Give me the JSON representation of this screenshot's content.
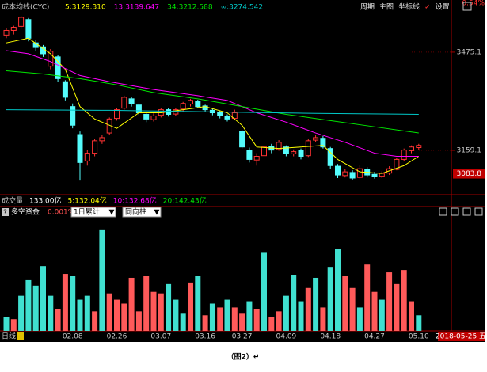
{
  "chart_data": [
    {
      "type": "candlestick",
      "title": "成本均线(CYC)",
      "open": [
        3530,
        3545,
        3558,
        3580,
        3505,
        3492,
        3430,
        3460,
        3380,
        3300,
        3210,
        3125,
        3150,
        3190,
        3215,
        3262,
        3295,
        3325,
        3305,
        3275,
        3258,
        3272,
        3290,
        3276,
        3292,
        3308,
        3318,
        3302,
        3288,
        3282,
        3268,
        3262,
        3220,
        3160,
        3128,
        3142,
        3172,
        3162,
        3170,
        3148,
        3158,
        3142,
        3192,
        3198,
        3165,
        3108,
        3078,
        3088,
        3072,
        3098,
        3082,
        3076,
        3086,
        3098,
        3130,
        3158,
        3168
      ],
      "high": [
        3552,
        3560,
        3592,
        3585,
        3515,
        3498,
        3485,
        3465,
        3385,
        3310,
        3220,
        3160,
        3195,
        3210,
        3265,
        3295,
        3335,
        3332,
        3310,
        3282,
        3278,
        3296,
        3295,
        3295,
        3315,
        3325,
        3322,
        3306,
        3296,
        3288,
        3275,
        3290,
        3225,
        3168,
        3150,
        3175,
        3180,
        3192,
        3175,
        3162,
        3165,
        3195,
        3210,
        3205,
        3170,
        3115,
        3098,
        3095,
        3112,
        3105,
        3090,
        3092,
        3108,
        3135,
        3165,
        3175,
        3180
      ],
      "low": [
        3520,
        3532,
        3550,
        3510,
        3480,
        3460,
        3420,
        3380,
        3320,
        3230,
        3062,
        3110,
        3140,
        3180,
        3210,
        3255,
        3290,
        3300,
        3272,
        3250,
        3252,
        3265,
        3268,
        3270,
        3285,
        3300,
        3295,
        3284,
        3272,
        3262,
        3252,
        3258,
        3165,
        3120,
        3110,
        3135,
        3150,
        3158,
        3140,
        3140,
        3130,
        3138,
        3185,
        3165,
        3100,
        3070,
        3072,
        3065,
        3068,
        3072,
        3068,
        3070,
        3080,
        3095,
        3125,
        3150,
        3160
      ],
      "close": [
        3545,
        3555,
        3587,
        3520,
        3490,
        3470,
        3478,
        3390,
        3330,
        3240,
        3120,
        3150,
        3190,
        3200,
        3260,
        3290,
        3330,
        3310,
        3280,
        3260,
        3270,
        3290,
        3275,
        3290,
        3310,
        3320,
        3300,
        3290,
        3280,
        3270,
        3260,
        3280,
        3170,
        3130,
        3140,
        3170,
        3160,
        3185,
        3150,
        3155,
        3140,
        3190,
        3200,
        3170,
        3110,
        3080,
        3090,
        3070,
        3100,
        3080,
        3075,
        3085,
        3100,
        3130,
        3160,
        3170,
        3175
      ],
      "up_color": "#ff3232",
      "down_color": "#54fcfc",
      "lines": [
        {
          "name": "5:3129.310",
          "color": "#ffff00",
          "x": [
            0,
            3,
            6,
            8,
            10,
            12,
            15,
            18,
            21,
            24,
            27,
            30,
            32,
            34,
            37,
            40,
            43,
            45,
            48,
            51,
            54,
            56
          ],
          "values": [
            3505,
            3520,
            3470,
            3420,
            3300,
            3260,
            3230,
            3280,
            3280,
            3290,
            3300,
            3280,
            3240,
            3170,
            3165,
            3170,
            3175,
            3130,
            3090,
            3085,
            3110,
            3140
          ]
        },
        {
          "name": "13:3139.647",
          "color": "#ff00ff",
          "x": [
            0,
            3,
            6,
            10,
            14,
            20,
            26,
            30,
            34,
            38,
            42,
            46,
            50,
            53,
            56
          ],
          "values": [
            3480,
            3470,
            3445,
            3400,
            3380,
            3355,
            3335,
            3320,
            3280,
            3250,
            3215,
            3185,
            3150,
            3140,
            3140
          ]
        },
        {
          "name": "34:3212.588",
          "color": "#00e600",
          "x": [
            0,
            5,
            10,
            15,
            20,
            26,
            32,
            38,
            44,
            50,
            56
          ],
          "values": [
            3415,
            3405,
            3390,
            3370,
            3345,
            3325,
            3300,
            3275,
            3255,
            3235,
            3215
          ]
        },
        {
          "name": "∞:3274.542",
          "color": "#00c8c8",
          "x": [
            0,
            14,
            28,
            42,
            56
          ],
          "values": [
            3290,
            3288,
            3283,
            3278,
            3275
          ]
        }
      ],
      "ylim": [
        3019,
        3643
      ],
      "yticks": [
        3475.1,
        3159.1
      ],
      "last_price": 3083.8,
      "corner_label": "0.54%",
      "menu": [
        "周期",
        "主图",
        "坐标线",
        "✓",
        "设置"
      ],
      "volume_info": [
        {
          "text": "成交量",
          "color": "#c8c8c8"
        },
        {
          "text": "133.00亿",
          "color": "#ffffff"
        },
        {
          "text": "5:132.04亿",
          "color": "#ffff00"
        },
        {
          "text": "10:132.68亿",
          "color": "#ff00ff"
        },
        {
          "text": "20:142.43亿",
          "color": "#00e600"
        }
      ]
    },
    {
      "type": "bar",
      "title": "多空资金",
      "ratio": "0.001%",
      "controls": [
        "1日累计",
        "同向柱"
      ],
      "values": [
        18,
        15,
        45,
        65,
        58,
        83,
        45,
        28,
        73,
        70,
        40,
        45,
        25,
        130,
        48,
        40,
        35,
        68,
        25,
        70,
        50,
        48,
        60,
        40,
        22,
        62,
        70,
        20,
        35,
        30,
        40,
        30,
        22,
        38,
        28,
        100,
        18,
        25,
        45,
        72,
        38,
        55,
        68,
        30,
        82,
        105,
        70,
        55,
        30,
        85,
        50,
        40,
        75,
        60,
        78,
        38,
        20
      ],
      "up": [
        false,
        true,
        false,
        false,
        false,
        false,
        false,
        true,
        true,
        false,
        false,
        false,
        true,
        false,
        true,
        true,
        true,
        true,
        true,
        true,
        true,
        true,
        false,
        false,
        false,
        true,
        false,
        true,
        false,
        true,
        false,
        true,
        true,
        false,
        true,
        false,
        true,
        true,
        false,
        false,
        false,
        true,
        false,
        true,
        false,
        false,
        true,
        true,
        false,
        true,
        true,
        false,
        true,
        true,
        true,
        true,
        false
      ],
      "up_color": "#ff5a5a",
      "down_color": "#40e0d0",
      "ylim": [
        0,
        140
      ],
      "categories": [
        null,
        null,
        null,
        null,
        null,
        null,
        null,
        null,
        null,
        "02.08",
        null,
        null,
        null,
        null,
        null,
        "02.26",
        null,
        null,
        null,
        null,
        null,
        "03.07",
        null,
        null,
        null,
        null,
        null,
        "03.16",
        null,
        null,
        null,
        null,
        "03.27",
        null,
        null,
        null,
        null,
        null,
        "04.09",
        null,
        null,
        null,
        null,
        null,
        "04.18",
        null,
        null,
        null,
        null,
        null,
        "04.27",
        null,
        null,
        null,
        null,
        null,
        "05.10"
      ],
      "period": "日线",
      "date_label": "2018-05-25 五"
    }
  ],
  "caption": "（图2）↵"
}
